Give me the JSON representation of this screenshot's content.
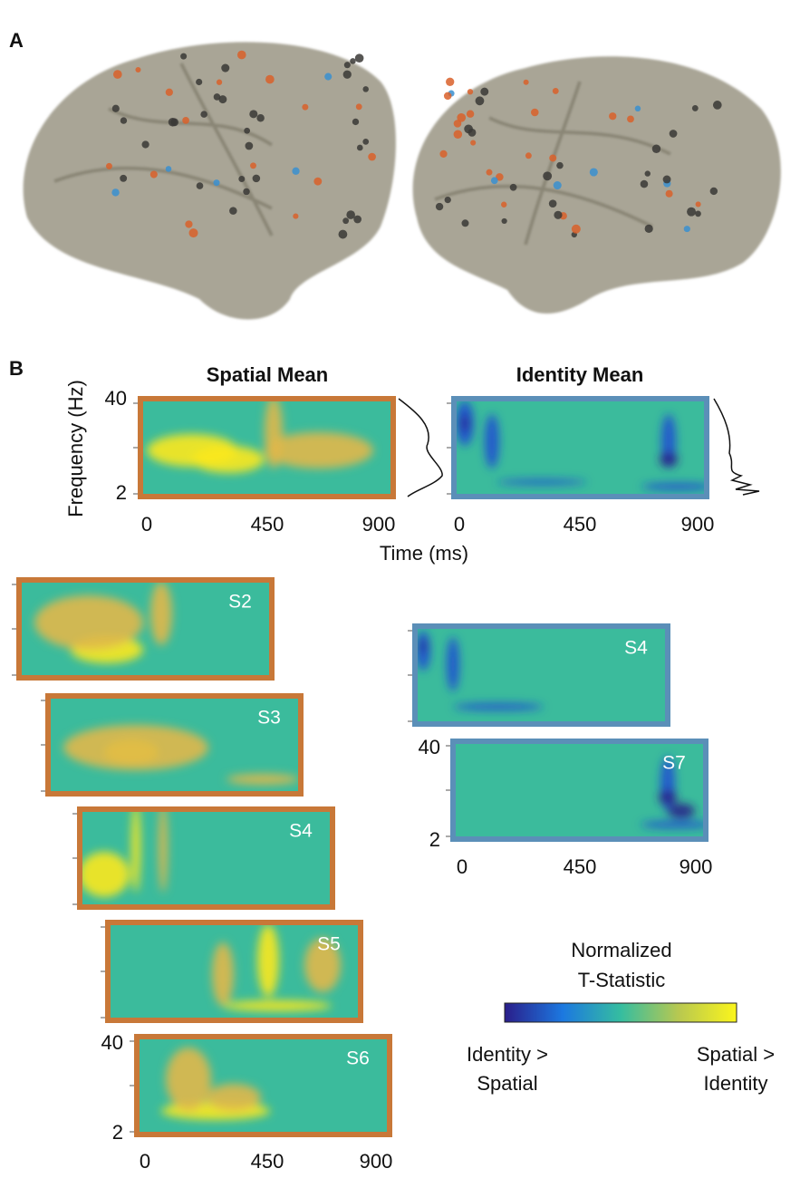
{
  "panel_a": {
    "label": "A"
  },
  "panel_b": {
    "label": "B",
    "y_axis_label": "Frequency (Hz)",
    "x_axis_label": "Time (ms)",
    "means": [
      {
        "title": "Spatial Mean",
        "yticks": [
          "40",
          "2"
        ],
        "xticks": [
          "0",
          "450",
          "900"
        ]
      },
      {
        "title": "Identity Mean",
        "xticks": [
          "0",
          "450",
          "900"
        ]
      }
    ],
    "spatial_subjects": [
      {
        "label": "S2"
      },
      {
        "label": "S3"
      },
      {
        "label": "S4"
      },
      {
        "label": "S5"
      },
      {
        "label": "S6",
        "yticks": [
          "40",
          "2"
        ],
        "xticks": [
          "0",
          "450",
          "900"
        ]
      }
    ],
    "identity_subjects": [
      {
        "label": "S4"
      },
      {
        "label": "S7",
        "yticks": [
          "40",
          "2"
        ],
        "xticks": [
          "0",
          "450",
          "900"
        ]
      }
    ],
    "colorbar": {
      "title": [
        "Normalized",
        "T-Statistic"
      ],
      "low": [
        "Identity >",
        "Spatial"
      ],
      "high": [
        "Spatial >",
        "Identity"
      ]
    }
  }
}
